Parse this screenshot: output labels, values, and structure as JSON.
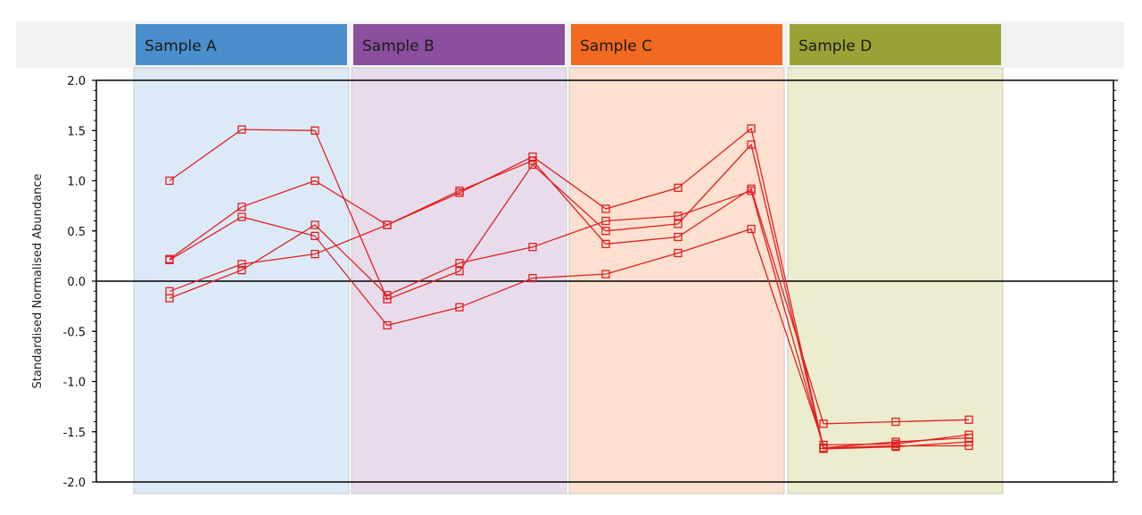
{
  "chart_data": {
    "type": "line",
    "ylabel": "Standardised Normalised Abundance",
    "ylim": [
      -2.0,
      2.0
    ],
    "yticks": [
      "2.0",
      "1.5",
      "1.0",
      "0.5",
      "0.0",
      "-0.5",
      "-1.0",
      "-1.5",
      "-2.0"
    ],
    "groups": [
      {
        "label": "Sample A",
        "header_color": "#4a8fcc",
        "band_color": "#dceaf8"
      },
      {
        "label": "Sample B",
        "header_color": "#8b4f9e",
        "band_color": "#e8dcec"
      },
      {
        "label": "Sample C",
        "header_color": "#f26a22",
        "band_color": "#fde0cf"
      },
      {
        "label": "Sample D",
        "header_color": "#9aa236",
        "band_color": "#ecedcf"
      }
    ],
    "line_color": "#e02020",
    "x": [
      1,
      2,
      3,
      4,
      5,
      6,
      7,
      8,
      9,
      10,
      11,
      12
    ],
    "series": [
      {
        "values": [
          1.0,
          1.51,
          1.5,
          -0.18,
          0.1,
          1.16,
          0.5,
          0.57,
          1.36,
          -1.67,
          -1.65,
          -1.6
        ]
      },
      {
        "values": [
          0.22,
          0.74,
          1.0,
          0.56,
          0.9,
          1.2,
          0.37,
          0.44,
          0.92,
          -1.42,
          -1.4,
          -1.38
        ]
      },
      {
        "values": [
          0.21,
          0.64,
          0.45,
          -0.44,
          -0.26,
          0.03,
          0.07,
          0.28,
          0.52,
          -1.63,
          -1.62,
          -1.53
        ]
      },
      {
        "values": [
          -0.1,
          0.17,
          0.27,
          0.56,
          0.88,
          1.24,
          0.72,
          0.93,
          1.52,
          -1.66,
          -1.6,
          -1.56
        ]
      },
      {
        "values": [
          -0.17,
          0.11,
          0.56,
          -0.14,
          0.18,
          0.34,
          0.6,
          0.65,
          0.9,
          -1.66,
          -1.64,
          -1.64
        ]
      }
    ]
  }
}
